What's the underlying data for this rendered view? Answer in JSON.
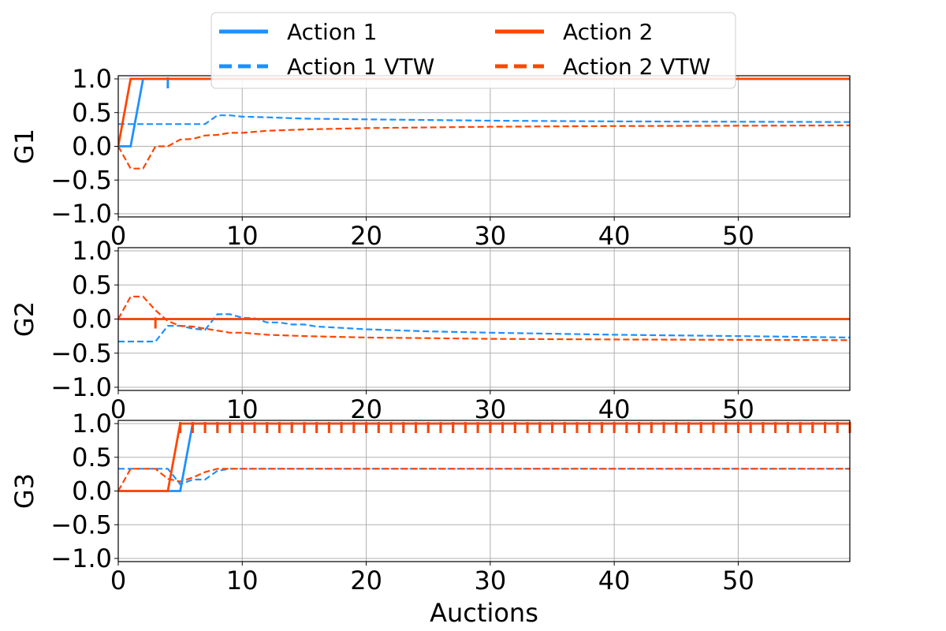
{
  "colors": {
    "action1": "#1E90FF",
    "action2": "#FF4500",
    "grid": "#b0b0b0"
  },
  "legend": {
    "placement": "top-center",
    "entries": [
      {
        "label": "Action 1",
        "series": "action1",
        "style": "solid"
      },
      {
        "label": "Action 2",
        "series": "action2",
        "style": "solid"
      },
      {
        "label": "Action 1 VTW",
        "series": "action1",
        "style": "dashed"
      },
      {
        "label": "Action 2 VTW",
        "series": "action2",
        "style": "dashed"
      }
    ]
  },
  "chart_data": [
    {
      "type": "line",
      "ylabel": "G1",
      "xlabel": "",
      "xlim": [
        0,
        59
      ],
      "ylim": [
        -1,
        1
      ],
      "xticks": [
        0,
        10,
        20,
        30,
        40,
        50
      ],
      "yticks": [
        -1.0,
        -0.5,
        0.0,
        0.5,
        1.0
      ],
      "grid": true,
      "series": [
        {
          "name": "Action 1",
          "color": "action1",
          "style": "solid",
          "points": [
            [
              0,
              0
            ],
            [
              1,
              0
            ],
            [
              2,
              1
            ],
            [
              59,
              1
            ]
          ],
          "markers": [
            [
              4,
              1
            ]
          ]
        },
        {
          "name": "Action 2",
          "color": "action2",
          "style": "solid",
          "points": [
            [
              0,
              0
            ],
            [
              1,
              1
            ],
            [
              59,
              1
            ]
          ],
          "markers": []
        },
        {
          "name": "Action 1 VTW",
          "color": "action1",
          "style": "dashed",
          "points": [
            [
              0,
              0.33
            ],
            [
              7,
              0.33
            ],
            [
              8,
              0.46
            ],
            [
              9,
              0.46
            ],
            [
              10,
              0.44
            ],
            [
              12,
              0.43
            ],
            [
              15,
              0.41
            ],
            [
              20,
              0.4
            ],
            [
              30,
              0.38
            ],
            [
              40,
              0.37
            ],
            [
              59,
              0.36
            ]
          ]
        },
        {
          "name": "Action 2 VTW",
          "color": "action2",
          "style": "dashed",
          "points": [
            [
              0,
              0
            ],
            [
              1,
              -0.33
            ],
            [
              2,
              -0.33
            ],
            [
              3,
              0
            ],
            [
              4,
              0
            ],
            [
              5,
              0.1
            ],
            [
              6,
              0.11
            ],
            [
              7,
              0.16
            ],
            [
              8,
              0.17
            ],
            [
              9,
              0.2
            ],
            [
              10,
              0.2
            ],
            [
              12,
              0.23
            ],
            [
              15,
              0.25
            ],
            [
              20,
              0.27
            ],
            [
              30,
              0.29
            ],
            [
              40,
              0.3
            ],
            [
              59,
              0.31
            ]
          ]
        }
      ]
    },
    {
      "type": "line",
      "ylabel": "G2",
      "xlabel": "",
      "xlim": [
        0,
        59
      ],
      "ylim": [
        -1,
        1
      ],
      "xticks": [
        0,
        10,
        20,
        30,
        40,
        50
      ],
      "yticks": [
        -1.0,
        -0.5,
        0.0,
        0.5,
        1.0
      ],
      "grid": true,
      "series": [
        {
          "name": "Action 1",
          "color": "action1",
          "style": "solid",
          "points": [
            [
              0,
              0
            ],
            [
              59,
              0
            ]
          ],
          "markers": []
        },
        {
          "name": "Action 2",
          "color": "action2",
          "style": "solid",
          "points": [
            [
              0,
              0
            ],
            [
              59,
              0
            ]
          ],
          "markers": [
            [
              3,
              0
            ]
          ]
        },
        {
          "name": "Action 1 VTW",
          "color": "action1",
          "style": "dashed",
          "points": [
            [
              0,
              -0.33
            ],
            [
              3,
              -0.33
            ],
            [
              4,
              -0.1
            ],
            [
              5,
              -0.1
            ],
            [
              6,
              -0.14
            ],
            [
              7,
              -0.16
            ],
            [
              8,
              0.07
            ],
            [
              9,
              0.07
            ],
            [
              10,
              0.02
            ],
            [
              11,
              0.01
            ],
            [
              12,
              -0.05
            ],
            [
              13,
              -0.05
            ],
            [
              14,
              -0.08
            ],
            [
              15,
              -0.08
            ],
            [
              16,
              -0.11
            ],
            [
              18,
              -0.13
            ],
            [
              20,
              -0.15
            ],
            [
              25,
              -0.18
            ],
            [
              30,
              -0.2
            ],
            [
              40,
              -0.23
            ],
            [
              50,
              -0.25
            ],
            [
              59,
              -0.27
            ]
          ]
        },
        {
          "name": "Action 2 VTW",
          "color": "action2",
          "style": "dashed",
          "points": [
            [
              0,
              0
            ],
            [
              1,
              0.33
            ],
            [
              2,
              0.33
            ],
            [
              3,
              0.13
            ],
            [
              4,
              -0.03
            ],
            [
              5,
              -0.1
            ],
            [
              6,
              -0.11
            ],
            [
              7,
              -0.14
            ],
            [
              8,
              -0.17
            ],
            [
              9,
              -0.2
            ],
            [
              10,
              -0.2
            ],
            [
              12,
              -0.23
            ],
            [
              15,
              -0.25
            ],
            [
              20,
              -0.27
            ],
            [
              30,
              -0.29
            ],
            [
              40,
              -0.3
            ],
            [
              59,
              -0.31
            ]
          ]
        }
      ]
    },
    {
      "type": "line",
      "ylabel": "G3",
      "xlabel": "Auctions",
      "xlim": [
        0,
        59
      ],
      "ylim": [
        -1,
        1
      ],
      "xticks": [
        0,
        10,
        20,
        30,
        40,
        50
      ],
      "yticks": [
        -1.0,
        -0.5,
        0.0,
        0.5,
        1.0
      ],
      "grid": true,
      "series": [
        {
          "name": "Action 1",
          "color": "action1",
          "style": "solid",
          "points": [
            [
              0,
              0
            ],
            [
              5,
              0
            ],
            [
              6,
              1
            ],
            [
              59,
              1
            ]
          ],
          "markers": [
            [
              6,
              1
            ],
            [
              7,
              1
            ],
            [
              8,
              1
            ],
            [
              9,
              1
            ],
            [
              10,
              1
            ],
            [
              11,
              1
            ],
            [
              12,
              1
            ],
            [
              13,
              1
            ],
            [
              14,
              1
            ],
            [
              15,
              1
            ],
            [
              16,
              1
            ],
            [
              17,
              1
            ],
            [
              18,
              1
            ],
            [
              19,
              1
            ],
            [
              20,
              1
            ],
            [
              21,
              1
            ],
            [
              22,
              1
            ],
            [
              23,
              1
            ],
            [
              24,
              1
            ],
            [
              25,
              1
            ],
            [
              26,
              1
            ],
            [
              27,
              1
            ],
            [
              28,
              1
            ],
            [
              29,
              1
            ],
            [
              30,
              1
            ],
            [
              31,
              1
            ],
            [
              32,
              1
            ],
            [
              33,
              1
            ],
            [
              34,
              1
            ],
            [
              35,
              1
            ],
            [
              36,
              1
            ],
            [
              37,
              1
            ],
            [
              38,
              1
            ],
            [
              39,
              1
            ],
            [
              40,
              1
            ],
            [
              41,
              1
            ],
            [
              42,
              1
            ],
            [
              43,
              1
            ],
            [
              44,
              1
            ],
            [
              45,
              1
            ],
            [
              46,
              1
            ],
            [
              47,
              1
            ],
            [
              48,
              1
            ],
            [
              49,
              1
            ],
            [
              50,
              1
            ],
            [
              51,
              1
            ],
            [
              52,
              1
            ],
            [
              53,
              1
            ],
            [
              54,
              1
            ],
            [
              55,
              1
            ],
            [
              56,
              1
            ],
            [
              57,
              1
            ],
            [
              58,
              1
            ],
            [
              59,
              1
            ]
          ]
        },
        {
          "name": "Action 2",
          "color": "action2",
          "style": "solid",
          "points": [
            [
              0,
              0
            ],
            [
              4,
              0
            ],
            [
              5,
              1
            ],
            [
              59,
              1
            ]
          ],
          "markers": [
            [
              5,
              1
            ],
            [
              6,
              1
            ],
            [
              7,
              1
            ],
            [
              8,
              1
            ],
            [
              9,
              1
            ],
            [
              10,
              1
            ],
            [
              11,
              1
            ],
            [
              12,
              1
            ],
            [
              13,
              1
            ],
            [
              14,
              1
            ],
            [
              15,
              1
            ],
            [
              16,
              1
            ],
            [
              17,
              1
            ],
            [
              18,
              1
            ],
            [
              19,
              1
            ],
            [
              20,
              1
            ],
            [
              21,
              1
            ],
            [
              22,
              1
            ],
            [
              23,
              1
            ],
            [
              24,
              1
            ],
            [
              25,
              1
            ],
            [
              26,
              1
            ],
            [
              27,
              1
            ],
            [
              28,
              1
            ],
            [
              29,
              1
            ],
            [
              30,
              1
            ],
            [
              31,
              1
            ],
            [
              32,
              1
            ],
            [
              33,
              1
            ],
            [
              34,
              1
            ],
            [
              35,
              1
            ],
            [
              36,
              1
            ],
            [
              37,
              1
            ],
            [
              38,
              1
            ],
            [
              39,
              1
            ],
            [
              40,
              1
            ],
            [
              41,
              1
            ],
            [
              42,
              1
            ],
            [
              43,
              1
            ],
            [
              44,
              1
            ],
            [
              45,
              1
            ],
            [
              46,
              1
            ],
            [
              47,
              1
            ],
            [
              48,
              1
            ],
            [
              49,
              1
            ],
            [
              50,
              1
            ],
            [
              51,
              1
            ],
            [
              52,
              1
            ],
            [
              53,
              1
            ],
            [
              54,
              1
            ],
            [
              55,
              1
            ],
            [
              56,
              1
            ],
            [
              57,
              1
            ],
            [
              58,
              1
            ],
            [
              59,
              1
            ]
          ]
        },
        {
          "name": "Action 1 VTW",
          "color": "action1",
          "style": "dashed",
          "points": [
            [
              0,
              0.33
            ],
            [
              4,
              0.33
            ],
            [
              5,
              0.1
            ],
            [
              6,
              0.17
            ],
            [
              7,
              0.17
            ],
            [
              8,
              0.3
            ],
            [
              9,
              0.33
            ],
            [
              59,
              0.33
            ]
          ]
        },
        {
          "name": "Action 2 VTW",
          "color": "action2",
          "style": "dashed",
          "points": [
            [
              0,
              0
            ],
            [
              1,
              0.33
            ],
            [
              3,
              0.33
            ],
            [
              4,
              0.18
            ],
            [
              5,
              0.14
            ],
            [
              6,
              0.2
            ],
            [
              7,
              0.28
            ],
            [
              8,
              0.33
            ],
            [
              59,
              0.33
            ]
          ]
        }
      ]
    }
  ]
}
